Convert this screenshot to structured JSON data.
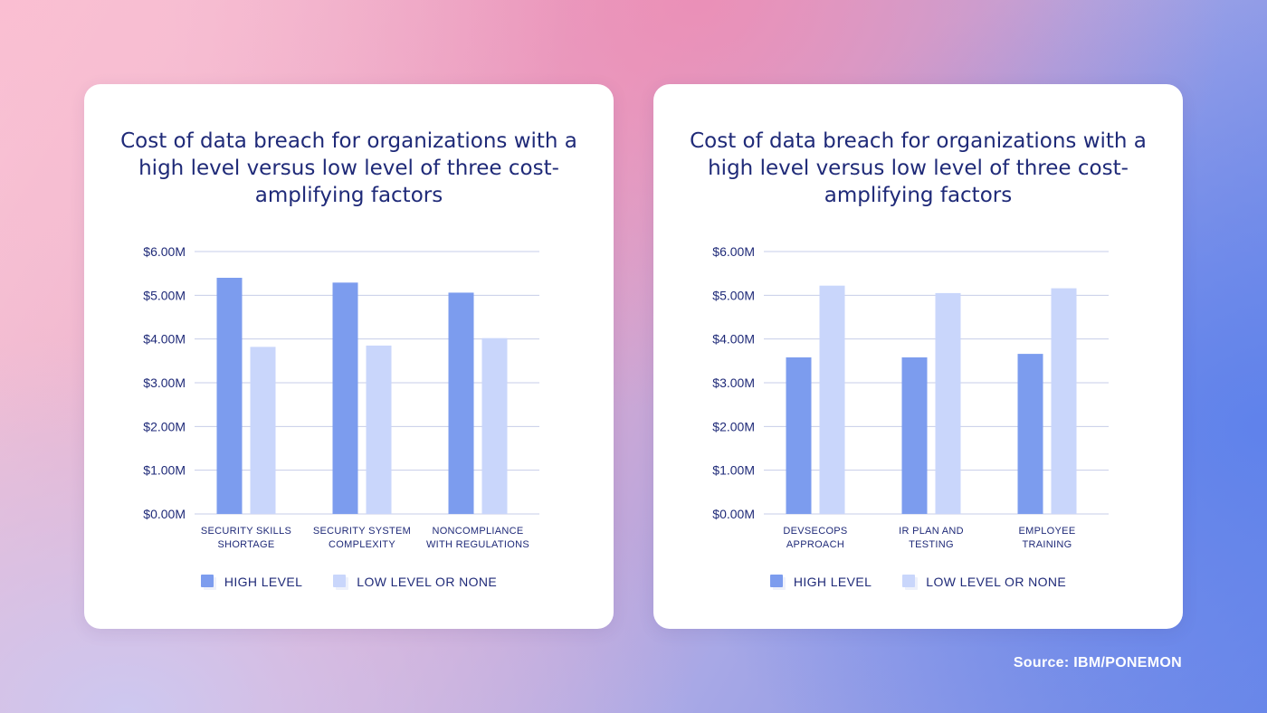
{
  "colors": {
    "high": "#7c9cee",
    "low": "#c9d6fb",
    "grid": "#c7cde8",
    "text": "#1f2a78"
  },
  "legend": {
    "high": "HIGH LEVEL",
    "low": "LOW LEVEL OR NONE"
  },
  "source": "Source: IBM/PONEMON",
  "chart_data": [
    {
      "type": "bar",
      "title": "Cost of data breach for organizations with a high level versus low level of three cost-amplifying factors",
      "categories": [
        [
          "SECURITY SKILLS",
          "SHORTAGE"
        ],
        [
          "SECURITY SYSTEM",
          "COMPLEXITY"
        ],
        [
          "NONCOMPLIANCE",
          "WITH REGULATIONS"
        ]
      ],
      "series": [
        {
          "name": "HIGH LEVEL",
          "values": [
            5.4,
            5.29,
            5.06
          ]
        },
        {
          "name": "LOW LEVEL OR NONE",
          "values": [
            3.82,
            3.85,
            4.02
          ]
        }
      ],
      "ylim": [
        0,
        6
      ],
      "yticks": [
        "$0.00M",
        "$1.00M",
        "$2.00M",
        "$3.00M",
        "$4.00M",
        "$5.00M",
        "$6.00M"
      ],
      "grid": true,
      "legend_position": "bottom"
    },
    {
      "type": "bar",
      "title": "Cost of data breach for organizations with a high level versus low level of three cost-amplifying factors",
      "categories": [
        [
          "DEVSECOPS",
          "APPROACH"
        ],
        [
          "IR PLAN AND",
          "TESTING"
        ],
        [
          "EMPLOYEE",
          "TRAINING"
        ]
      ],
      "series": [
        {
          "name": "HIGH LEVEL",
          "values": [
            3.58,
            3.58,
            3.66
          ]
        },
        {
          "name": "LOW LEVEL OR NONE",
          "values": [
            5.22,
            5.05,
            5.16
          ]
        }
      ],
      "ylim": [
        0,
        6
      ],
      "yticks": [
        "$0.00M",
        "$1.00M",
        "$2.00M",
        "$3.00M",
        "$4.00M",
        "$5.00M",
        "$6.00M"
      ],
      "grid": true,
      "legend_position": "bottom"
    }
  ]
}
